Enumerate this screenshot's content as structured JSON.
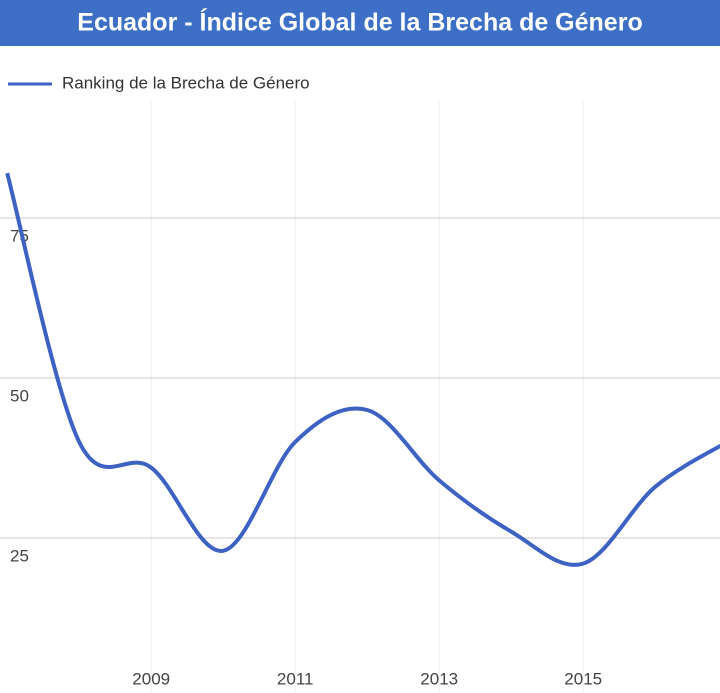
{
  "chart_data": {
    "type": "line",
    "title": "Ecuador - Índice Global de la Brecha de Género",
    "series": [
      {
        "name": "Ranking de la Brecha de Género",
        "color": "#3d62c4",
        "values": [
          82,
          40,
          36,
          23,
          40,
          45,
          34,
          26,
          21,
          33,
          40
        ]
      }
    ],
    "x": [
      2007,
      2008,
      2009,
      2010,
      2011,
      2012,
      2013,
      2014,
      2015,
      2016,
      2017
    ],
    "xlim": [
      2006.9,
      2016.9
    ],
    "xticks": [
      2009,
      2011,
      2013,
      2015
    ],
    "ylim": [
      0,
      100
    ],
    "yticks": [
      25,
      50,
      75
    ],
    "grid": true
  }
}
